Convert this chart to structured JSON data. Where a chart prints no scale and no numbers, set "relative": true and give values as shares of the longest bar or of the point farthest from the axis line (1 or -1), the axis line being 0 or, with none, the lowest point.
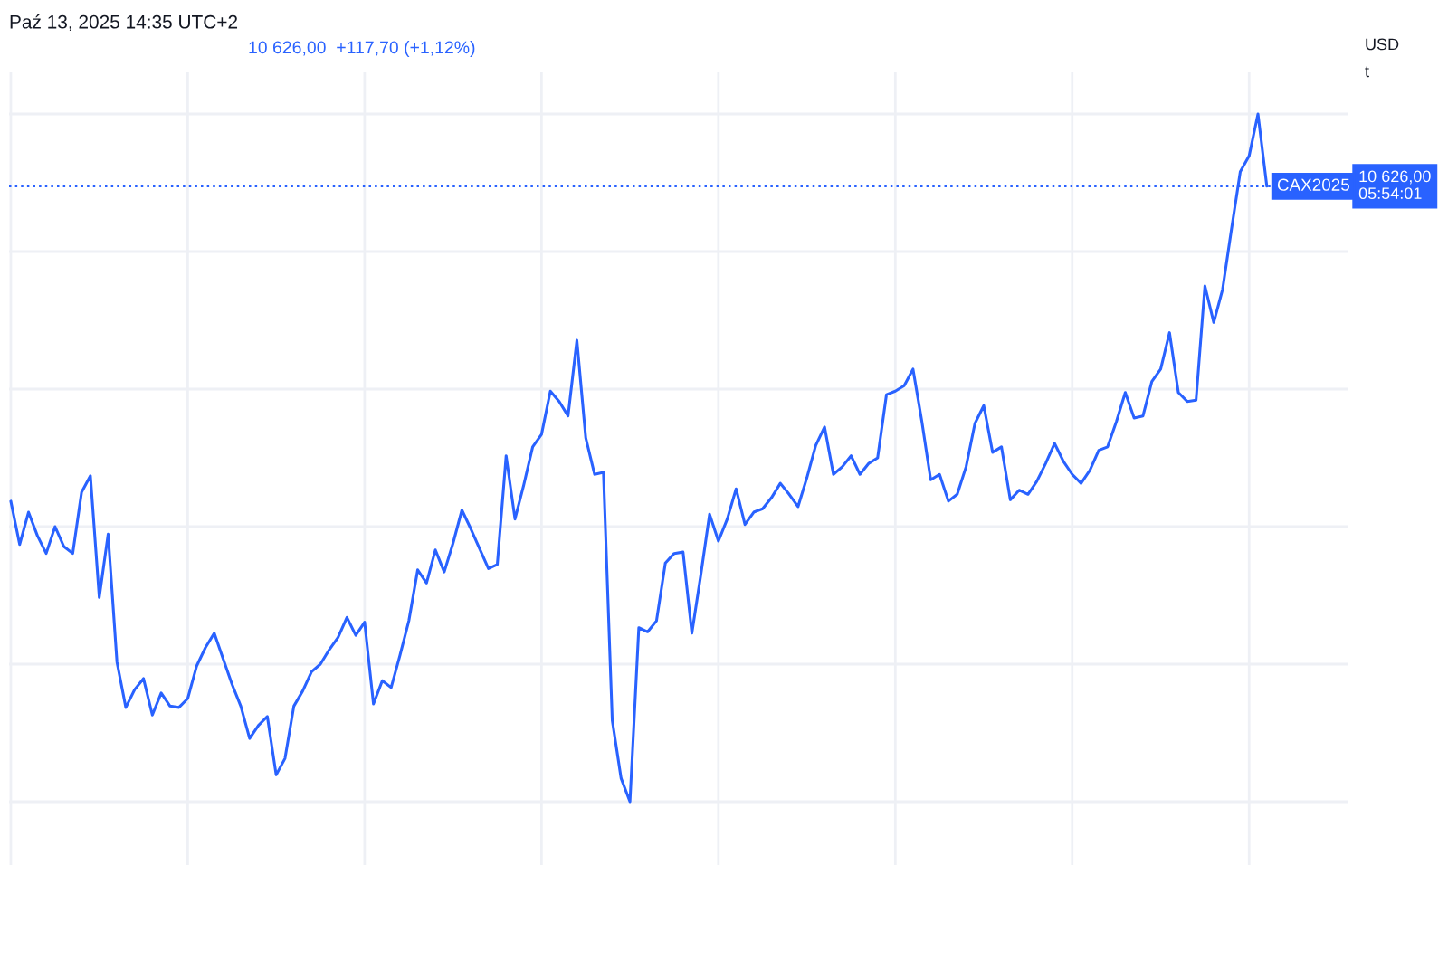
{
  "chart_data": {
    "type": "line",
    "title": "Paź 13, 2025 14:35 UTC+2",
    "subtitle": "10 626,00  +117,70 (+1,12%)",
    "annotations": [
      "USD\nt"
    ],
    "relative": true,
    "grid": true,
    "categories": [
      null,
      null,
      null,
      null,
      null,
      null,
      null,
      null,
      null,
      null,
      null,
      null,
      null,
      null,
      null,
      null,
      null,
      null,
      null,
      null,
      null,
      null,
      null,
      null,
      null,
      null,
      null,
      null,
      null,
      null,
      null,
      null,
      null,
      null,
      null,
      null,
      null,
      null,
      null,
      null,
      null,
      null,
      null,
      null,
      null,
      null,
      null,
      null,
      null,
      null,
      null,
      null,
      null,
      null,
      null,
      null,
      null,
      null,
      null,
      null,
      null,
      null,
      null,
      null,
      null,
      null,
      null,
      null,
      null,
      null,
      null,
      null,
      null,
      null,
      null,
      null,
      null,
      null,
      null,
      null,
      null,
      null,
      null,
      null,
      null,
      null,
      null,
      null,
      null,
      null,
      null,
      null,
      null,
      null,
      null,
      null,
      null,
      null,
      null,
      null,
      null,
      null,
      null,
      null,
      null,
      null,
      null,
      null,
      null,
      null,
      null,
      null,
      null,
      null,
      null,
      null,
      null,
      null,
      null,
      null,
      null,
      null,
      null,
      null,
      null,
      null,
      null,
      null,
      null,
      null,
      null,
      null,
      null,
      null,
      null,
      null,
      null,
      null,
      null,
      null,
      null,
      null,
      null
    ],
    "series": [
      {
        "name": "CAX2025",
        "color": "#2962ff",
        "values": [
          0.437,
          0.374,
          0.421,
          0.387,
          0.361,
          0.4,
          0.371,
          0.361,
          0.45,
          0.474,
          0.297,
          0.389,
          0.203,
          0.137,
          0.163,
          0.179,
          0.126,
          0.158,
          0.139,
          0.137,
          0.15,
          0.197,
          0.224,
          0.245,
          0.208,
          0.171,
          0.139,
          0.092,
          0.111,
          0.124,
          0.039,
          0.063,
          0.139,
          0.161,
          0.189,
          0.2,
          0.221,
          0.239,
          0.268,
          0.242,
          0.261,
          0.142,
          0.176,
          0.166,
          0.213,
          0.263,
          0.337,
          0.318,
          0.366,
          0.334,
          0.376,
          0.424,
          0.397,
          0.368,
          0.339,
          0.345,
          0.503,
          0.411,
          0.461,
          0.516,
          0.534,
          0.597,
          0.582,
          0.561,
          0.671,
          0.529,
          0.476,
          0.479,
          0.118,
          0.034,
          0,
          0.253,
          0.247,
          0.263,
          0.347,
          0.361,
          0.363,
          0.245,
          0.329,
          0.418,
          0.379,
          0.411,
          0.455,
          0.403,
          0.421,
          0.426,
          0.442,
          0.463,
          0.447,
          0.429,
          0.471,
          0.518,
          0.545,
          0.476,
          0.487,
          0.503,
          0.476,
          0.492,
          0.5,
          0.592,
          0.597,
          0.605,
          0.629,
          0.553,
          0.468,
          0.476,
          0.437,
          0.447,
          0.487,
          0.55,
          0.576,
          0.508,
          0.516,
          0.439,
          0.453,
          0.447,
          0.466,
          0.492,
          0.521,
          0.495,
          0.476,
          0.463,
          0.482,
          0.511,
          0.516,
          0.553,
          0.595,
          0.558,
          0.561,
          0.611,
          0.629,
          0.682,
          0.595,
          0.582,
          0.584,
          0.75,
          0.697,
          0.745,
          0.832,
          0.916,
          0.939,
          1,
          0.895
        ]
      }
    ],
    "ref_lines": [
      {
        "axis": "y",
        "value": 0.895,
        "label": "10 626,00\n05:54:01",
        "color": "#2962ff",
        "line_style": "dotted"
      }
    ]
  }
}
